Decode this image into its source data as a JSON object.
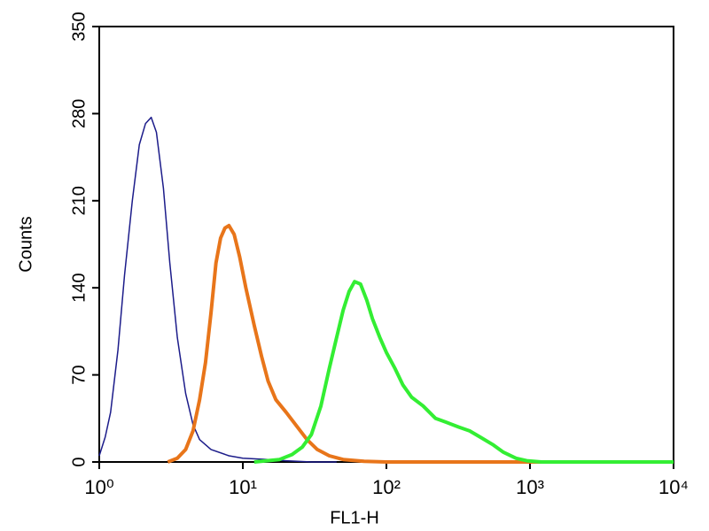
{
  "chart_data": {
    "type": "line",
    "x_label": "FL1-H",
    "y_label": "Counts",
    "xscale": "log",
    "xlim": [
      1,
      10000
    ],
    "ylim": [
      0,
      350
    ],
    "xticks": [
      {
        "value": 1,
        "label": "10⁰"
      },
      {
        "value": 10,
        "label": "10¹"
      },
      {
        "value": 100,
        "label": "10²"
      },
      {
        "value": 1000,
        "label": "10³"
      },
      {
        "value": 10000,
        "label": "10⁴"
      }
    ],
    "yticks": [
      0,
      70,
      140,
      210,
      280,
      350
    ],
    "series": [
      {
        "color": "#1c1c8a",
        "width": 1.5,
        "x": [
          1.0,
          1.1,
          1.2,
          1.35,
          1.5,
          1.7,
          1.9,
          2.1,
          2.3,
          2.5,
          2.8,
          3.1,
          3.5,
          4,
          4.5,
          5,
          6,
          8,
          10,
          15,
          20,
          30,
          45
        ],
        "values": [
          5,
          20,
          40,
          90,
          150,
          210,
          255,
          272,
          277,
          265,
          220,
          160,
          100,
          55,
          30,
          18,
          10,
          5,
          3,
          2,
          1,
          0,
          0
        ]
      },
      {
        "color": "#e8751a",
        "width": 4,
        "x": [
          3,
          3.5,
          4,
          4.5,
          5,
          5.5,
          6,
          6.5,
          7,
          7.5,
          8,
          8.7,
          9.5,
          10.5,
          12,
          13.5,
          15,
          17,
          20,
          24,
          28,
          33,
          40,
          50,
          70,
          100,
          1000,
          10000
        ],
        "values": [
          0,
          3,
          10,
          25,
          50,
          80,
          120,
          160,
          180,
          188,
          190,
          183,
          165,
          140,
          110,
          85,
          65,
          50,
          40,
          28,
          18,
          10,
          5,
          2,
          0.5,
          0,
          0,
          0
        ]
      },
      {
        "color": "#33ee33",
        "width": 4,
        "x": [
          12,
          18,
          22,
          26,
          30,
          35,
          40,
          45,
          50,
          55,
          60,
          66,
          73,
          80,
          90,
          100,
          115,
          130,
          150,
          180,
          220,
          260,
          320,
          380,
          450,
          550,
          650,
          800,
          950,
          1200,
          5000,
          10000
        ],
        "values": [
          0,
          2,
          6,
          12,
          22,
          45,
          75,
          100,
          122,
          137,
          145,
          143,
          130,
          115,
          100,
          88,
          75,
          62,
          52,
          45,
          35,
          32,
          28,
          25,
          20,
          14,
          8,
          3,
          1,
          0,
          0,
          0
        ]
      }
    ]
  }
}
